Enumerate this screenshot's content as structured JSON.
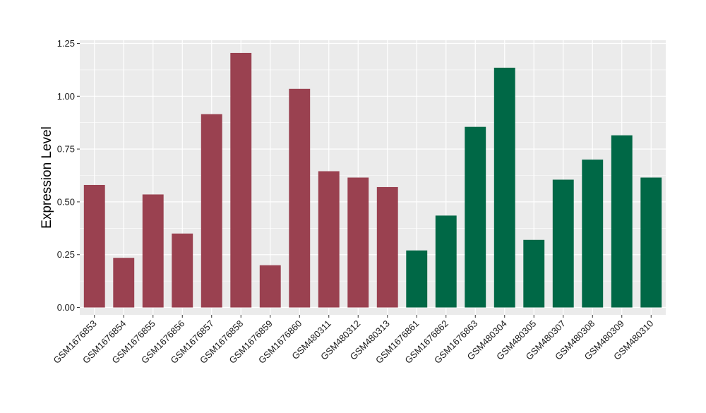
{
  "chart_data": {
    "type": "bar",
    "ylabel": "Expression Level",
    "ylim": [
      -0.035,
      1.265
    ],
    "y_ticks": [
      0.0,
      0.25,
      0.5,
      0.75,
      1.0,
      1.25
    ],
    "y_tick_labels": [
      "0.00",
      "0.25",
      "0.50",
      "0.75",
      "1.00",
      "1.25"
    ],
    "grid": true,
    "categories": [
      "GSM1676853",
      "GSM1676854",
      "GSM1676855",
      "GSM1676856",
      "GSM1676857",
      "GSM1676858",
      "GSM1676859",
      "GSM1676860",
      "GSM480311",
      "GSM480312",
      "GSM480313",
      "GSM1676861",
      "GSM1676862",
      "GSM1676863",
      "GSM480304",
      "GSM480305",
      "GSM480307",
      "GSM480308",
      "GSM480309",
      "GSM480310"
    ],
    "values": [
      0.58,
      0.235,
      0.535,
      0.35,
      0.915,
      1.205,
      0.2,
      1.035,
      0.645,
      0.615,
      0.57,
      0.27,
      0.435,
      0.855,
      1.135,
      0.32,
      0.605,
      0.7,
      0.815,
      0.615
    ],
    "bar_colors": [
      "#9a4150",
      "#9a4150",
      "#9a4150",
      "#9a4150",
      "#9a4150",
      "#9a4150",
      "#9a4150",
      "#9a4150",
      "#9a4150",
      "#9a4150",
      "#9a4150",
      "#006846",
      "#006846",
      "#006846",
      "#006846",
      "#006846",
      "#006846",
      "#006846",
      "#006846",
      "#006846"
    ],
    "colors": {
      "group_1": "#9a4150",
      "group_2": "#006846",
      "panel_background": "#ebebeb",
      "grid_line": "#ffffff"
    }
  }
}
